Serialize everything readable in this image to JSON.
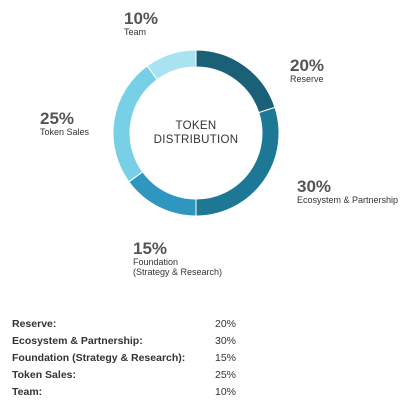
{
  "chart_data": {
    "type": "pie",
    "variant": "donut",
    "title_lines": [
      "TOKEN",
      "DISTRIBUTION"
    ],
    "unit": "%",
    "slices": [
      {
        "label_lines": [
          "Reserve"
        ],
        "pct_label": "20%",
        "value": 20,
        "color": "#1a6178"
      },
      {
        "label_lines": [
          "Ecosystem & Partnership"
        ],
        "pct_label": "30%",
        "value": 30,
        "color": "#1c7894"
      },
      {
        "label_lines": [
          "Foundation",
          "(Strategy & Research)"
        ],
        "pct_label": "15%",
        "value": 15,
        "color": "#2f96c0"
      },
      {
        "label_lines": [
          "Token Sales"
        ],
        "pct_label": "25%",
        "value": 25,
        "color": "#78d0e6"
      },
      {
        "label_lines": [
          "Team"
        ],
        "pct_label": "10%",
        "value": 10,
        "color": "#a9e3f2"
      }
    ]
  },
  "summary_table": [
    {
      "name": "Reserve:",
      "value": "20%"
    },
    {
      "name": "Ecosystem & Partnership:",
      "value": "30%"
    },
    {
      "name": "Foundation (Strategy & Research):",
      "value": "15%"
    },
    {
      "name": "Token Sales:",
      "value": "25%"
    },
    {
      "name": "Team:",
      "value": "10%"
    }
  ]
}
